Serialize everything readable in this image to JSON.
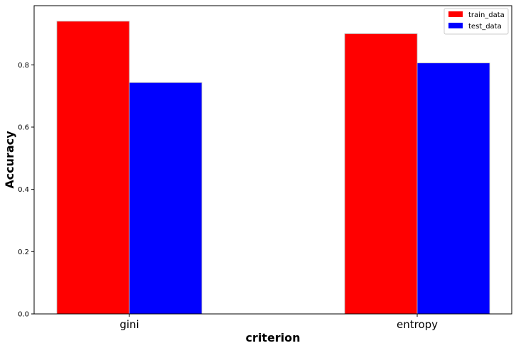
{
  "chart_data": {
    "type": "bar",
    "title": "",
    "xlabel": "criterion",
    "ylabel": "Accuracy",
    "categories": [
      "gini",
      "entropy"
    ],
    "series": [
      {
        "name": "train_data",
        "color": "#ff0000",
        "values": [
          0.94,
          0.9
        ]
      },
      {
        "name": "test_data",
        "color": "#0000ff",
        "values": [
          0.743,
          0.806
        ]
      }
    ],
    "ylim": [
      0,
      0.99
    ],
    "yticks": [
      "0.0",
      "0.2",
      "0.4",
      "0.6",
      "0.8"
    ],
    "grid": false,
    "legend_position": "top-right"
  }
}
